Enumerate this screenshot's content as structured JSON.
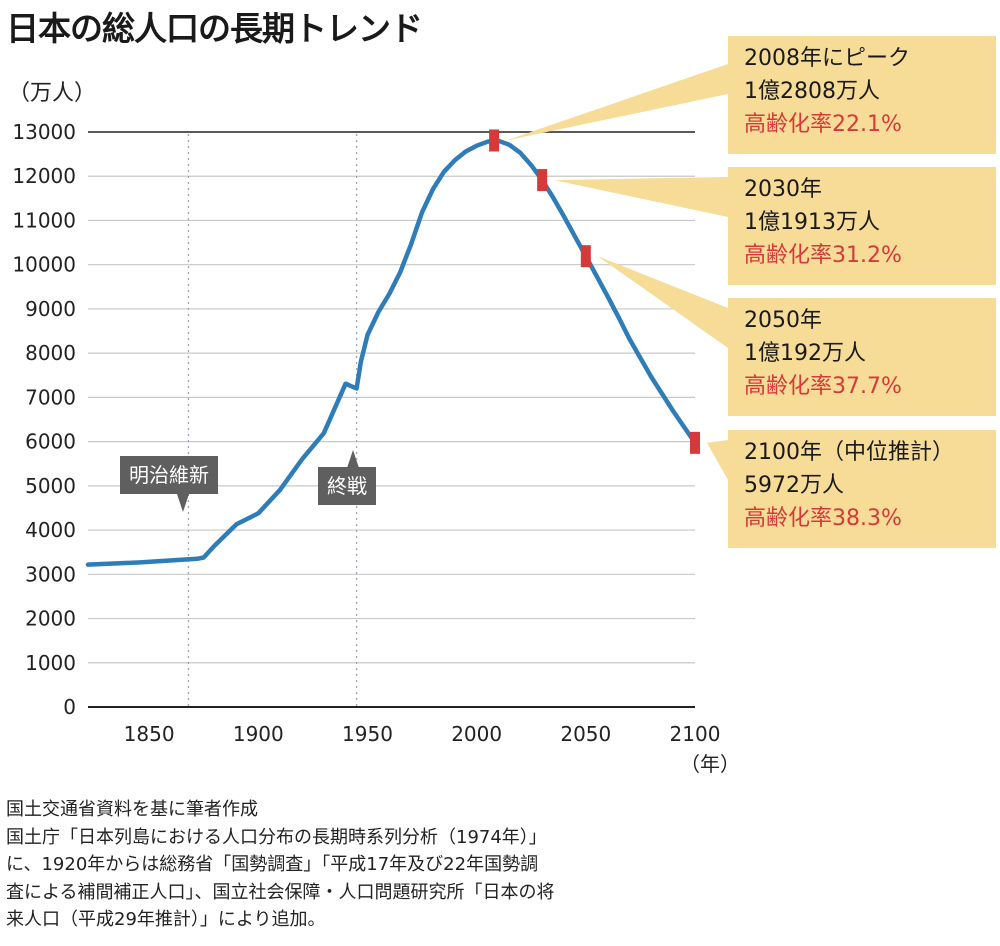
{
  "title": "日本の総人口の長期トレンド",
  "y_unit": "（万人）",
  "x_unit": "（年）",
  "colors": {
    "line": "#2f7db8",
    "marker": "#d6393a",
    "callout_bg": "#f6dc96",
    "callout_red": "#d6393a",
    "event_bg": "#5f5f5f",
    "grid": "#c8c8c8"
  },
  "chart_data": {
    "type": "line",
    "title": "日本の総人口の長期トレンド",
    "ylabel": "（万人）",
    "xlabel": "（年）",
    "ylim": [
      0,
      13000
    ],
    "xlim": [
      1822,
      2100
    ],
    "yticks": [
      0,
      1000,
      2000,
      3000,
      4000,
      5000,
      6000,
      7000,
      8000,
      9000,
      10000,
      11000,
      12000,
      13000
    ],
    "xticks": [
      1850,
      1900,
      1950,
      2000,
      2050,
      2100
    ],
    "grid": true,
    "series": [
      {
        "x": [
          1822,
          1846,
          1872,
          1875,
          1880,
          1890,
          1900,
          1910,
          1920,
          1930,
          1940,
          1945,
          1947,
          1950,
          1955,
          1960,
          1965,
          1970,
          1975,
          1980,
          1985,
          1990,
          1995,
          2000,
          2005,
          2008,
          2010,
          2015,
          2020,
          2025,
          2030,
          2035,
          2040,
          2045,
          2050,
          2055,
          2060,
          2065,
          2070,
          2080,
          2090,
          2100
        ],
        "y": [
          3220,
          3270,
          3350,
          3380,
          3650,
          4130,
          4380,
          4910,
          5600,
          6190,
          7310,
          7200,
          7810,
          8410,
          8930,
          9340,
          9830,
          10470,
          11190,
          11710,
          12100,
          12360,
          12560,
          12690,
          12780,
          12808,
          12800,
          12710,
          12530,
          12250,
          11913,
          11520,
          11090,
          10640,
          10192,
          9740,
          9280,
          8810,
          8320,
          7460,
          6690,
          5972
        ]
      }
    ],
    "markers": [
      {
        "x": 2008,
        "y": 12808
      },
      {
        "x": 2030,
        "y": 11913
      },
      {
        "x": 2050,
        "y": 10192
      },
      {
        "x": 2100,
        "y": 5972
      }
    ],
    "events": [
      {
        "x": 1868,
        "label": "明治維新"
      },
      {
        "x": 1945,
        "label": "終戦"
      }
    ]
  },
  "callouts": [
    {
      "line1": "2008年にピーク",
      "line2": "1億2808万人",
      "line3": "高齢化率22.1%"
    },
    {
      "line1": "2030年",
      "line2": "1億1913万人",
      "line3": "高齢化率31.2%"
    },
    {
      "line1": "2050年",
      "line2": "1億192万人",
      "line3": "高齢化率37.7%"
    },
    {
      "line1": "2100年（中位推計）",
      "line2": "5972万人",
      "line3": "高齢化率38.3%"
    }
  ],
  "footer": {
    "line1": "国土交通省資料を基に筆者作成",
    "line2": "国土庁「日本列島における人口分布の長期時系列分析（1974年）」",
    "line3": "に、1920年からは総務省「国勢調査」「平成17年及び22年国勢調",
    "line4": "査による補間補正人口」、国立社会保障・人口問題研究所「日本の将",
    "line5": "来人口（平成29年推計）」により追加。"
  }
}
